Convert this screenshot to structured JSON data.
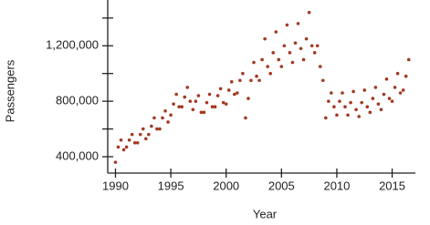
{
  "chart_data": {
    "type": "scatter",
    "x_label": "Year",
    "y_label": "Passengers",
    "color": "#a33a22",
    "x": [
      1990,
      1990.25,
      1990.5,
      1990.75,
      1991,
      1991.25,
      1991.5,
      1991.75,
      1992,
      1992.25,
      1992.5,
      1992.75,
      1993,
      1993.25,
      1993.5,
      1993.75,
      1994,
      1994.25,
      1994.5,
      1994.75,
      1995,
      1995.25,
      1995.5,
      1995.75,
      1996,
      1996.25,
      1996.5,
      1996.75,
      1997,
      1997.25,
      1997.5,
      1997.75,
      1998,
      1998.25,
      1998.5,
      1998.75,
      1999,
      1999.25,
      1999.5,
      1999.75,
      2000,
      2000.25,
      2000.5,
      2000.75,
      2001,
      2001.25,
      2001.5,
      2001.75,
      2002,
      2002.25,
      2002.5,
      2002.75,
      2003,
      2003.25,
      2003.5,
      2003.75,
      2004,
      2004.25,
      2004.5,
      2004.75,
      2005,
      2005.25,
      2005.5,
      2005.75,
      2006,
      2006.25,
      2006.5,
      2006.75,
      2007,
      2007.25,
      2007.5,
      2007.75,
      2008,
      2008.25,
      2008.5,
      2008.75,
      2009,
      2009.25,
      2009.5,
      2009.75,
      2010,
      2010.25,
      2010.5,
      2010.75,
      2011,
      2011.25,
      2011.5,
      2011.75,
      2012,
      2012.25,
      2012.5,
      2012.75,
      2013,
      2013.25,
      2013.5,
      2013.75,
      2014,
      2014.25,
      2014.5,
      2014.75,
      2015,
      2015.25,
      2015.5,
      2015.75,
      2016,
      2016.25,
      2016.5
    ],
    "values": [
      360000,
      470000,
      520000,
      450000,
      470000,
      520000,
      560000,
      500000,
      500000,
      560000,
      600000,
      530000,
      560000,
      620000,
      680000,
      600000,
      600000,
      680000,
      730000,
      650000,
      700000,
      780000,
      850000,
      760000,
      760000,
      830000,
      900000,
      800000,
      740000,
      800000,
      840000,
      720000,
      720000,
      790000,
      850000,
      760000,
      760000,
      840000,
      890000,
      790000,
      780000,
      880000,
      940000,
      850000,
      860000,
      950000,
      1000000,
      680000,
      820000,
      950000,
      1080000,
      980000,
      950000,
      1100000,
      1250000,
      1050000,
      1000000,
      1150000,
      1300000,
      1100000,
      1050000,
      1200000,
      1350000,
      1150000,
      1080000,
      1220000,
      1360000,
      1180000,
      1100000,
      1250000,
      1440000,
      1200000,
      1150000,
      1200000,
      1050000,
      950000,
      680000,
      800000,
      860000,
      760000,
      700000,
      800000,
      860000,
      760000,
      700000,
      790000,
      870000,
      740000,
      690000,
      790000,
      880000,
      760000,
      720000,
      820000,
      900000,
      780000,
      740000,
      850000,
      960000,
      820000,
      800000,
      900000,
      1000000,
      860000,
      880000,
      980000,
      1100000
    ],
    "xlim": [
      1989.3,
      2017.1
    ],
    "ylim": [
      282000,
      1530000
    ],
    "xticks": [
      1990,
      1995,
      2000,
      2005,
      2010,
      2015
    ],
    "yticks": [
      {
        "value": 400000,
        "label": "400,000"
      },
      {
        "value": 800000,
        "label": "800,000"
      },
      {
        "value": 1200000,
        "label": "1,200,000"
      }
    ],
    "minor_yticks": [
      600000,
      1000000,
      1400000
    ]
  }
}
